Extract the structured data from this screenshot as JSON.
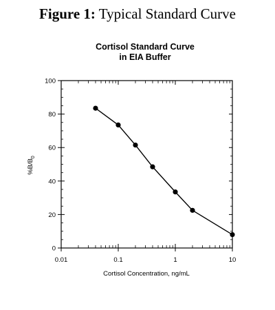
{
  "figure": {
    "label": "Figure 1:",
    "caption": "Typical Standard Curve"
  },
  "chart_data": {
    "type": "line",
    "title_lines": [
      "Cortisol Standard Curve",
      "in EIA Buffer"
    ],
    "xlabel": "Cortisol Concentration, ng/mL",
    "ylabel": "%B/B",
    "ylabel_subscript": "0",
    "x_scale": "log",
    "xlim": [
      0.01,
      10
    ],
    "ylim": [
      0,
      100
    ],
    "x_ticks": [
      0.01,
      0.1,
      1,
      10
    ],
    "x_tick_labels": [
      "0.01",
      "0.1",
      "1",
      "10"
    ],
    "y_ticks": [
      0,
      20,
      40,
      60,
      80,
      100
    ],
    "y_tick_labels": [
      "0",
      "20",
      "40",
      "60",
      "80",
      "100"
    ],
    "grid": false,
    "series": [
      {
        "marker": "circle",
        "color": "#000000",
        "x": [
          0.04,
          0.1,
          0.2,
          0.4,
          1.0,
          2.0,
          10.0
        ],
        "y": [
          83.5,
          73.5,
          61.5,
          48.5,
          33.5,
          22.5,
          8
        ]
      }
    ]
  }
}
